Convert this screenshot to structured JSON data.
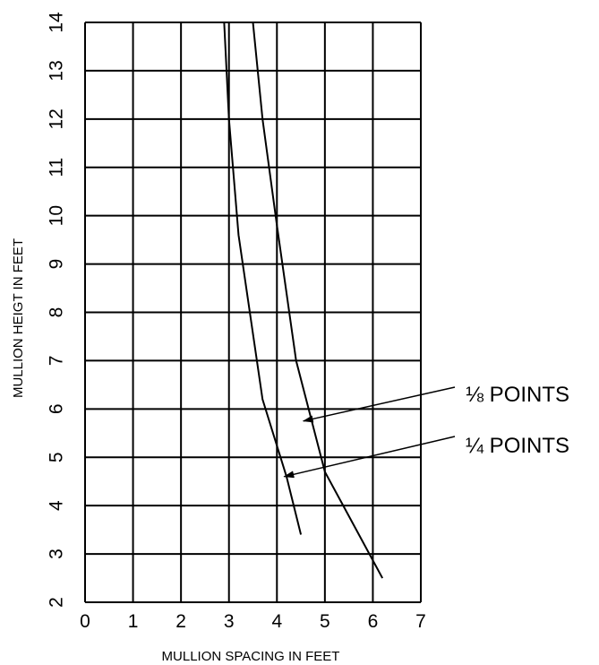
{
  "chart_data": {
    "type": "line",
    "title": "",
    "xlabel": "MULLION SPACING IN FEET",
    "ylabel": "MULLION HEIGT IN FEET",
    "xlim": [
      0,
      7
    ],
    "ylim": [
      2,
      14
    ],
    "x_ticks": [
      "0",
      "1",
      "2",
      "3",
      "4",
      "5",
      "6",
      "7"
    ],
    "y_ticks": [
      "2",
      "3",
      "4",
      "5",
      "6",
      "7",
      "8",
      "9",
      "10",
      "11",
      "12",
      "13",
      "14"
    ],
    "grid": true,
    "series": [
      {
        "name": "⅛ POINTS",
        "x": [
          3.5,
          3.7,
          4.0,
          4.4,
          5.0,
          6.2
        ],
        "y": [
          14.0,
          12.0,
          9.8,
          7.0,
          4.7,
          2.5
        ]
      },
      {
        "name": "¼ POINTS",
        "x": [
          2.9,
          3.0,
          3.2,
          3.7,
          4.2,
          4.5
        ],
        "y": [
          14.0,
          12.0,
          9.6,
          6.2,
          4.6,
          3.4
        ]
      }
    ],
    "annotations": [
      {
        "label": "⅛ POINTS",
        "arrow_to": [
          4.55,
          5.75
        ]
      },
      {
        "label": "¼ POINTS",
        "arrow_to": [
          4.15,
          4.6
        ]
      }
    ]
  }
}
